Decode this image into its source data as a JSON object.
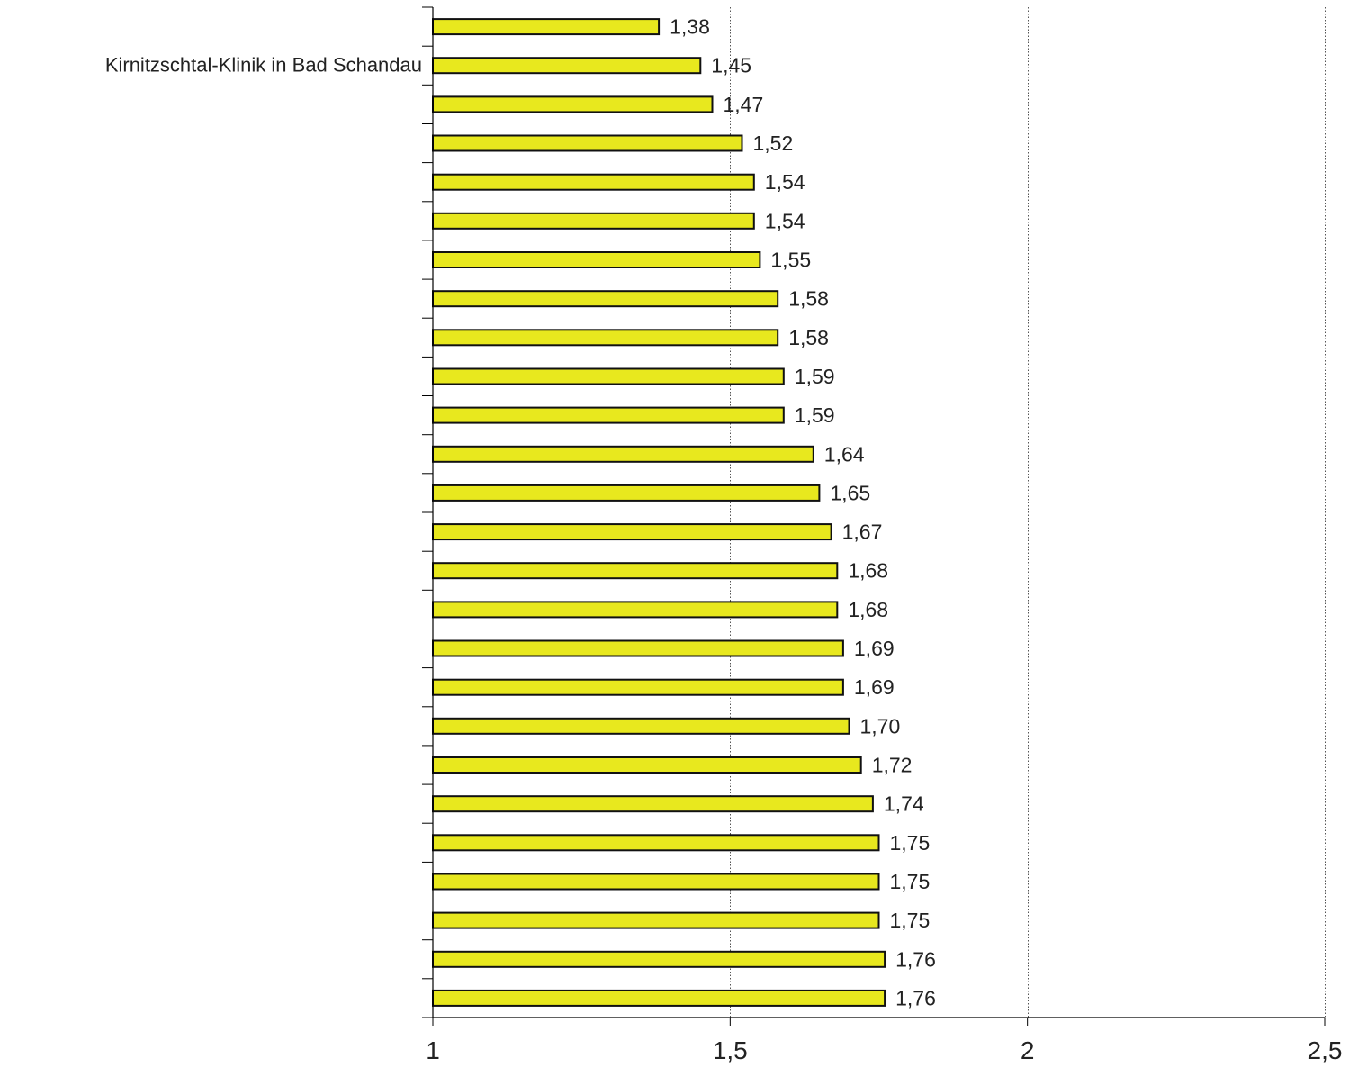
{
  "colors": {
    "bar_fill": "#e8e81e",
    "bar_stroke": "#111111",
    "axis": "#000000",
    "grid": "#555555",
    "text": "#222222"
  },
  "chart_data": {
    "type": "bar",
    "orientation": "horizontal",
    "categories": [
      "",
      "Kirnitzschtal-Klinik in Bad Schandau",
      "",
      "",
      "",
      "",
      "",
      "",
      "",
      "",
      "",
      "",
      "",
      "",
      "",
      "",
      "",
      "",
      "",
      "",
      "",
      "",
      "",
      "",
      "",
      ""
    ],
    "values": [
      1.38,
      1.45,
      1.47,
      1.52,
      1.54,
      1.54,
      1.55,
      1.58,
      1.58,
      1.59,
      1.59,
      1.64,
      1.65,
      1.67,
      1.68,
      1.68,
      1.69,
      1.69,
      1.7,
      1.72,
      1.74,
      1.75,
      1.75,
      1.75,
      1.76,
      1.76
    ],
    "value_labels": [
      "1,38",
      "1,45",
      "1,47",
      "1,52",
      "1,54",
      "1,54",
      "1,55",
      "1,58",
      "1,58",
      "1,59",
      "1,59",
      "1,64",
      "1,65",
      "1,67",
      "1,68",
      "1,68",
      "1,69",
      "1,69",
      "1,70",
      "1,72",
      "1,74",
      "1,75",
      "1,75",
      "1,75",
      "1,76",
      "1,76"
    ],
    "xlim": [
      1,
      2.5
    ],
    "xticks": [
      1,
      1.5,
      2,
      2.5
    ],
    "xtick_labels": [
      "1",
      "1,5",
      "2",
      "2,5"
    ],
    "grid": "vertical-dotted",
    "legend": "none",
    "title": "",
    "xlabel": "",
    "ylabel": ""
  }
}
